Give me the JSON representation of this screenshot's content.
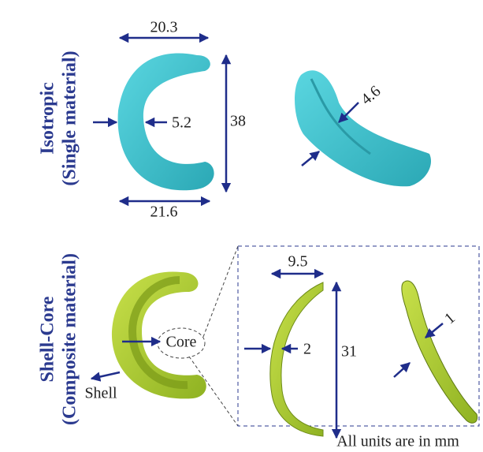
{
  "isotropic": {
    "label": "Isotropic",
    "sublabel": "(Single material)",
    "dims": {
      "top_width": "20.3",
      "thickness": "5.2",
      "height": "38",
      "bottom_width": "21.6",
      "cross_thickness": "4.6"
    }
  },
  "shell_core": {
    "label": "Shell-Core",
    "sublabel": "(Composite material)",
    "core": "Core",
    "shell": "Shell",
    "dims": {
      "width": "9.5",
      "thickness": "2",
      "height": "31",
      "cross_thickness": "1"
    }
  },
  "note": "All units are in mm"
}
